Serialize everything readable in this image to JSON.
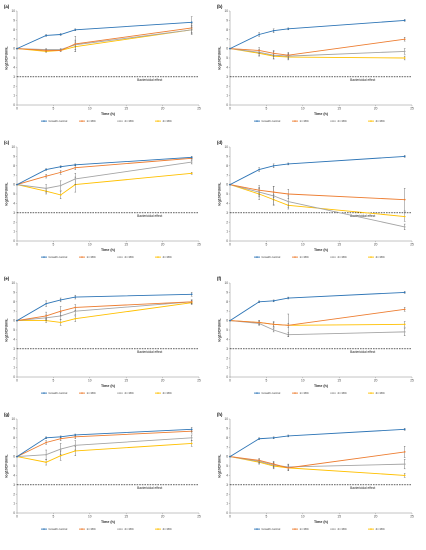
{
  "figure": {
    "x_ticks": [
      "0",
      "5",
      "10",
      "15",
      "20",
      "25"
    ],
    "y_ticks": [
      "0",
      "1",
      "2",
      "3",
      "4",
      "5",
      "6",
      "7",
      "8",
      "9",
      "10"
    ],
    "xlabel": "Time (h)",
    "ylabel": "log10CFU/mL",
    "threshold_label": "Bactericidal effect",
    "legend": [
      "Growth control",
      "1× MIC",
      "2× MIC",
      "4× MIC"
    ],
    "colors": [
      "#2e75b6",
      "#ed7d31",
      "#a5a5a5",
      "#ffc000"
    ],
    "threshold_color": "#000000"
  },
  "chart_data": [
    {
      "type": "line",
      "panel": "(a)",
      "xlim": [
        0,
        25
      ],
      "ylim": [
        0,
        10
      ],
      "threshold": 3,
      "x": [
        0,
        4,
        6,
        8,
        24
      ],
      "series": [
        {
          "name": "Growth control",
          "values": [
            6.0,
            7.4,
            7.5,
            8.0,
            8.8
          ],
          "errors": [
            0,
            0.1,
            0.1,
            0.1,
            0.6
          ]
        },
        {
          "name": "1× MIC",
          "values": [
            6.0,
            5.8,
            5.8,
            6.5,
            8.2
          ],
          "errors": [
            0,
            0.1,
            0.1,
            0.8,
            0.5
          ]
        },
        {
          "name": "2× MIC",
          "values": [
            6.0,
            5.9,
            5.9,
            6.4,
            8.0
          ],
          "errors": [
            0,
            0.1,
            0.1,
            0.5,
            0.5
          ]
        },
        {
          "name": "4× MIC",
          "values": [
            6.0,
            5.7,
            5.8,
            6.2,
            8.0
          ],
          "errors": [
            0,
            0.1,
            0.1,
            0.5,
            0.4
          ]
        }
      ]
    },
    {
      "type": "line",
      "panel": "(b)",
      "xlim": [
        0,
        25
      ],
      "ylim": [
        0,
        10
      ],
      "threshold": 3,
      "x": [
        0,
        4,
        6,
        8,
        24
      ],
      "series": [
        {
          "name": "Growth control",
          "values": [
            6.0,
            7.5,
            7.9,
            8.1,
            9.0
          ],
          "errors": [
            0,
            0.2,
            0.2,
            0.1,
            0.1
          ]
        },
        {
          "name": "1× MIC",
          "values": [
            6.0,
            5.8,
            5.5,
            5.3,
            7.0
          ],
          "errors": [
            0,
            0.3,
            0.3,
            0.3,
            0.2
          ]
        },
        {
          "name": "2× MIC",
          "values": [
            6.0,
            5.6,
            5.3,
            5.2,
            5.7
          ],
          "errors": [
            0,
            0.3,
            0.4,
            0.3,
            0.3
          ]
        },
        {
          "name": "4× MIC",
          "values": [
            6.0,
            5.5,
            5.2,
            5.1,
            5.0
          ],
          "errors": [
            0,
            0.3,
            0.3,
            0.3,
            0.2
          ]
        }
      ]
    },
    {
      "type": "line",
      "panel": "(c)",
      "xlim": [
        0,
        25
      ],
      "ylim": [
        0,
        10
      ],
      "threshold": 3,
      "x": [
        0,
        4,
        6,
        8,
        24
      ],
      "series": [
        {
          "name": "Growth control",
          "values": [
            6.0,
            7.6,
            7.9,
            8.1,
            8.9
          ],
          "errors": [
            0,
            0.1,
            0.1,
            0.1,
            0.1
          ]
        },
        {
          "name": "1× MIC",
          "values": [
            6.0,
            6.9,
            7.3,
            7.8,
            8.8
          ],
          "errors": [
            0,
            0.2,
            0.2,
            0.2,
            0.1
          ]
        },
        {
          "name": "2× MIC",
          "values": [
            6.0,
            5.6,
            5.9,
            6.6,
            8.4
          ],
          "errors": [
            0,
            0.4,
            0.5,
            0.6,
            0.2
          ]
        },
        {
          "name": "4× MIC",
          "values": [
            6.0,
            5.3,
            4.9,
            6.0,
            7.2
          ],
          "errors": [
            0,
            0.3,
            0.4,
            0.8,
            0.1
          ]
        }
      ]
    },
    {
      "type": "line",
      "panel": "(d)",
      "xlim": [
        0,
        25
      ],
      "ylim": [
        0,
        10
      ],
      "threshold": 3,
      "x": [
        0,
        4,
        6,
        8,
        24
      ],
      "series": [
        {
          "name": "Growth control",
          "values": [
            6.0,
            7.6,
            8.0,
            8.2,
            9.0
          ],
          "errors": [
            0,
            0.2,
            0.2,
            0.1,
            0.1
          ]
        },
        {
          "name": "1× MIC",
          "values": [
            6.0,
            5.4,
            5.2,
            5.0,
            4.4
          ],
          "errors": [
            0,
            0.5,
            0.6,
            0.5,
            1.2
          ]
        },
        {
          "name": "2× MIC",
          "values": [
            6.0,
            5.2,
            4.8,
            4.2,
            1.5
          ],
          "errors": [
            0,
            0.5,
            1.0,
            0.6,
            0.3
          ]
        },
        {
          "name": "4× MIC",
          "values": [
            6.0,
            5.0,
            4.4,
            3.8,
            2.6
          ],
          "errors": [
            0,
            0.6,
            0.5,
            0.4,
            0.5
          ]
        }
      ]
    },
    {
      "type": "line",
      "panel": "(e)",
      "xlim": [
        0,
        25
      ],
      "ylim": [
        0,
        10
      ],
      "threshold": 3,
      "x": [
        0,
        4,
        6,
        8,
        24
      ],
      "series": [
        {
          "name": "Growth control",
          "values": [
            6.0,
            7.8,
            8.2,
            8.5,
            8.8
          ],
          "errors": [
            0,
            0.3,
            0.2,
            0.2,
            0.2
          ]
        },
        {
          "name": "1× MIC",
          "values": [
            6.0,
            6.5,
            7.0,
            7.4,
            8.0
          ],
          "errors": [
            0,
            0.4,
            0.5,
            0.3,
            0.2
          ]
        },
        {
          "name": "2× MIC",
          "values": [
            6.0,
            6.3,
            6.5,
            7.0,
            8.0
          ],
          "errors": [
            0,
            0.3,
            0.4,
            0.4,
            0.2
          ]
        },
        {
          "name": "4× MIC",
          "values": [
            6.0,
            6.0,
            5.8,
            6.2,
            7.9
          ],
          "errors": [
            0,
            0.2,
            0.3,
            0.3,
            0.2
          ]
        }
      ]
    },
    {
      "type": "line",
      "panel": "(f)",
      "xlim": [
        0,
        25
      ],
      "ylim": [
        0,
        10
      ],
      "threshold": 3,
      "x": [
        0,
        4,
        6,
        8,
        24
      ],
      "series": [
        {
          "name": "Growth control",
          "values": [
            6.0,
            8.0,
            8.1,
            8.4,
            9.0
          ],
          "errors": [
            0,
            0.1,
            0.1,
            0.1,
            0.1
          ]
        },
        {
          "name": "1× MIC",
          "values": [
            6.0,
            5.8,
            5.6,
            5.5,
            7.2
          ],
          "errors": [
            0,
            0.2,
            0.3,
            1.2,
            0.2
          ]
        },
        {
          "name": "2× MIC",
          "values": [
            6.0,
            5.7,
            5.0,
            4.5,
            4.8
          ],
          "errors": [
            0,
            0.2,
            0.2,
            0.2,
            0.4
          ]
        },
        {
          "name": "4× MIC",
          "values": [
            6.0,
            5.8,
            5.6,
            5.5,
            5.6
          ],
          "errors": [
            0,
            0.2,
            0.2,
            0.2,
            0.3
          ]
        }
      ]
    },
    {
      "type": "line",
      "panel": "(g)",
      "xlim": [
        0,
        25
      ],
      "ylim": [
        0,
        10
      ],
      "threshold": 3,
      "x": [
        0,
        4,
        6,
        8,
        24
      ],
      "series": [
        {
          "name": "Growth control",
          "values": [
            6.0,
            8.0,
            8.1,
            8.3,
            8.9
          ],
          "errors": [
            0,
            0.1,
            0.1,
            0.1,
            0.2
          ]
        },
        {
          "name": "1× MIC",
          "values": [
            6.0,
            7.5,
            7.9,
            8.1,
            8.7
          ],
          "errors": [
            0,
            0.2,
            0.2,
            0.2,
            0.2
          ]
        },
        {
          "name": "2× MIC",
          "values": [
            6.0,
            6.2,
            6.8,
            7.2,
            8.0
          ],
          "errors": [
            0,
            0.5,
            0.6,
            0.5,
            0.3
          ]
        },
        {
          "name": "4× MIC",
          "values": [
            6.0,
            5.4,
            6.1,
            6.6,
            7.4
          ],
          "errors": [
            0,
            0.3,
            0.5,
            0.5,
            0.3
          ]
        }
      ]
    },
    {
      "type": "line",
      "panel": "(h)",
      "xlim": [
        0,
        25
      ],
      "ylim": [
        0,
        10
      ],
      "threshold": 3,
      "x": [
        0,
        4,
        6,
        8,
        24
      ],
      "series": [
        {
          "name": "Growth control",
          "values": [
            6.0,
            7.9,
            8.0,
            8.2,
            8.9
          ],
          "errors": [
            0,
            0.1,
            0.1,
            0.1,
            0.1
          ]
        },
        {
          "name": "1× MIC",
          "values": [
            6.0,
            5.6,
            5.2,
            4.8,
            6.5
          ],
          "errors": [
            0,
            0.2,
            0.3,
            0.3,
            0.6
          ]
        },
        {
          "name": "2× MIC",
          "values": [
            6.0,
            5.5,
            5.1,
            4.9,
            5.2
          ],
          "errors": [
            0,
            0.2,
            0.3,
            0.3,
            0.5
          ]
        },
        {
          "name": "4× MIC",
          "values": [
            6.0,
            5.4,
            5.0,
            4.8,
            4.0
          ],
          "errors": [
            0,
            0.2,
            0.3,
            0.3,
            0.2
          ]
        }
      ]
    }
  ]
}
